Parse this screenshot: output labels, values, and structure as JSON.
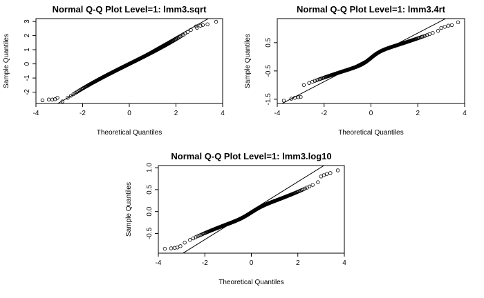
{
  "chart_data": [
    {
      "type": "scatter",
      "title": "Normal Q-Q Plot Level=1: lmm3.sqrt",
      "xlabel": "Theoretical Quantiles",
      "ylabel": "Sample Quantiles",
      "xlim": [
        -4,
        4
      ],
      "ylim": [
        -2.8,
        3.2
      ],
      "xticks": [
        "-4",
        "-2",
        "0",
        "2",
        "4"
      ],
      "yticks": [
        "-2",
        "-1",
        "0",
        "1",
        "2",
        "3"
      ],
      "reference_line": {
        "intercept": 0.05,
        "slope": 0.93
      },
      "shape": {
        "scale": 0.82,
        "cubic": 0.013,
        "tan_amp": 0,
        "tan_k": 1,
        "offset": 0.0
      },
      "extremes": [
        {
          "x": -3.72,
          "y": -2.57
        },
        {
          "x": -3.45,
          "y": -2.52
        },
        {
          "x": -3.3,
          "y": -2.52
        },
        {
          "x": -3.18,
          "y": -2.5
        },
        {
          "x": -3.08,
          "y": -2.4
        },
        {
          "x": 2.9,
          "y": 2.55
        },
        {
          "x": 3.05,
          "y": 2.7
        },
        {
          "x": 3.15,
          "y": 2.75
        },
        {
          "x": 3.35,
          "y": 2.8
        },
        {
          "x": 3.72,
          "y": 2.98
        }
      ]
    },
    {
      "type": "scatter",
      "title": "Normal Q-Q Plot Level=1: lmm3.4rt",
      "xlabel": "Theoretical Quantiles",
      "ylabel": "Sample Quantiles",
      "xlim": [
        -4,
        4
      ],
      "ylim": [
        -1.65,
        1.35
      ],
      "xticks": [
        "-4",
        "-2",
        "0",
        "2",
        "4"
      ],
      "yticks": [
        "-1.5",
        "-0.5",
        "0.5"
      ],
      "reference_line": {
        "intercept": -0.02,
        "slope": 0.43
      },
      "shape": {
        "scale": 0.25,
        "cubic": 0.003,
        "tan_amp": 0.17,
        "tan_k": 2.5,
        "offset": -0.04
      },
      "extremes": [
        {
          "x": -3.72,
          "y": -1.55
        },
        {
          "x": -3.4,
          "y": -1.48
        },
        {
          "x": -3.25,
          "y": -1.45
        },
        {
          "x": -3.1,
          "y": -1.43
        },
        {
          "x": -3.0,
          "y": -1.42
        },
        {
          "x": 3.0,
          "y": 1.02
        },
        {
          "x": 3.15,
          "y": 1.06
        },
        {
          "x": 3.3,
          "y": 1.1
        },
        {
          "x": 3.45,
          "y": 1.12
        },
        {
          "x": 3.72,
          "y": 1.22
        }
      ]
    },
    {
      "type": "scatter",
      "title": "Normal Q-Q Plot Level=1: lmm3.log10",
      "xlabel": "Theoretical Quantiles",
      "ylabel": "Sample Quantiles",
      "xlim": [
        -4,
        4
      ],
      "ylim": [
        -0.95,
        1.05
      ],
      "xticks": [
        "-4",
        "-2",
        "0",
        "2",
        "4"
      ],
      "yticks": [
        "-0.5",
        "0.0",
        "0.5",
        "1.0"
      ],
      "reference_line": {
        "intercept": 0.02,
        "slope": 0.33
      },
      "shape": {
        "scale": 0.18,
        "cubic": 0.004,
        "tan_amp": 0.08,
        "tan_k": 2.0,
        "offset": -0.02
      },
      "extremes": [
        {
          "x": -3.72,
          "y": -0.85
        },
        {
          "x": -3.45,
          "y": -0.84
        },
        {
          "x": -3.3,
          "y": -0.83
        },
        {
          "x": -3.18,
          "y": -0.82
        },
        {
          "x": -3.05,
          "y": -0.79
        },
        {
          "x": 3.0,
          "y": 0.8
        },
        {
          "x": 3.12,
          "y": 0.83
        },
        {
          "x": 3.25,
          "y": 0.86
        },
        {
          "x": 3.4,
          "y": 0.88
        },
        {
          "x": 3.72,
          "y": 0.94
        }
      ]
    }
  ]
}
